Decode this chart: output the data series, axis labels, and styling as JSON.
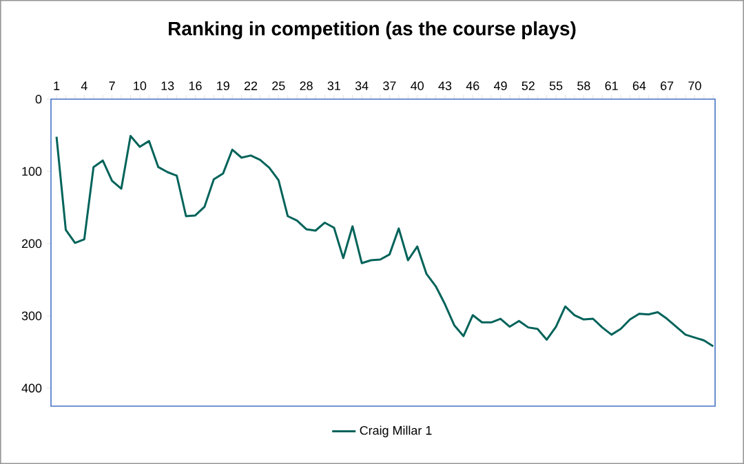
{
  "chart_data": {
    "type": "line",
    "title": "Ranking in competition (as the course plays)",
    "categories": [
      "1",
      null,
      null,
      "4",
      null,
      null,
      "7",
      null,
      null,
      "10",
      null,
      null,
      "13",
      null,
      null,
      "16",
      null,
      null,
      "19",
      null,
      null,
      "22",
      null,
      null,
      "25",
      null,
      null,
      "28",
      null,
      null,
      "31",
      null,
      null,
      "34",
      null,
      null,
      "37",
      null,
      null,
      "40",
      null,
      null,
      "43",
      null,
      null,
      "46",
      null,
      null,
      "49",
      null,
      null,
      "52",
      null,
      null,
      "55",
      null,
      null,
      "58",
      null,
      null,
      "61",
      null,
      null,
      "64",
      null,
      null,
      "67",
      null,
      null,
      "70",
      null,
      null
    ],
    "series": [
      {
        "name": "Craig Millar 1",
        "color": "#00635a",
        "values": [
          52,
          181,
          199,
          194,
          94,
          85,
          113,
          124,
          51,
          66,
          58,
          94,
          101,
          106,
          162,
          161,
          149,
          111,
          103,
          70,
          81,
          78,
          84,
          95,
          112,
          162,
          168,
          180,
          182,
          171,
          178,
          220,
          176,
          227,
          223,
          222,
          215,
          179,
          223,
          204,
          242,
          259,
          284,
          313,
          328,
          299,
          309,
          309,
          304,
          315,
          307,
          316,
          318,
          333,
          315,
          287,
          299,
          305,
          304,
          316,
          326,
          318,
          305,
          297,
          298,
          295,
          304,
          315,
          326,
          330,
          334,
          342
        ]
      }
    ],
    "ylim": [
      425,
      0
    ],
    "yticks": [
      0,
      100,
      200,
      300,
      400
    ],
    "legend": "bottom",
    "grid": false,
    "marker": "none",
    "line_style": "solid"
  }
}
